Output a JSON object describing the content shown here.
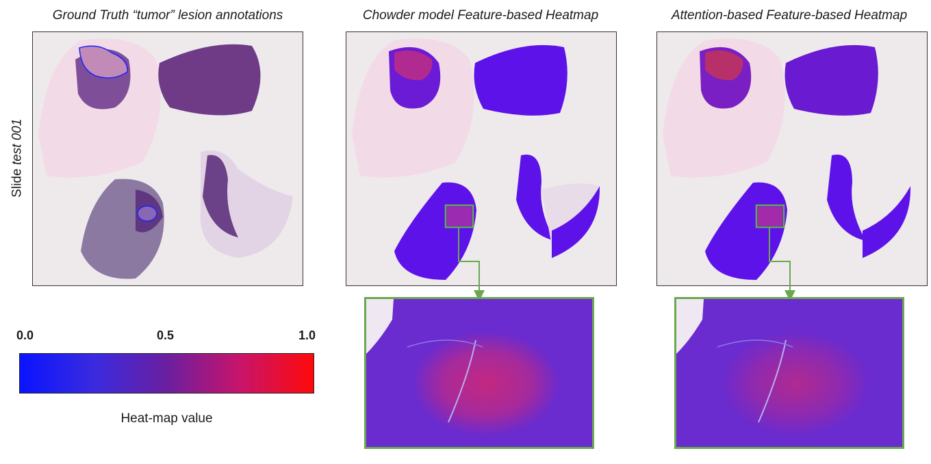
{
  "panels": [
    {
      "title": "Ground Truth “tumor” lesion annotations"
    },
    {
      "title": "Chowder model Feature-based Heatmap"
    },
    {
      "title": "Attention-based Feature-based Heatmap"
    }
  ],
  "slide_label": {
    "prefix": "Slide ",
    "name": "test 001"
  },
  "colorbar": {
    "ticks": [
      "0.0",
      "0.5",
      "1.0"
    ],
    "label": "Heat-map value",
    "colors": [
      "#0a14ff",
      "#6a1fa0",
      "#ff0a0a"
    ]
  },
  "colors": {
    "zoom_border": "#6aa84f",
    "annotation": "#1a22ff"
  }
}
